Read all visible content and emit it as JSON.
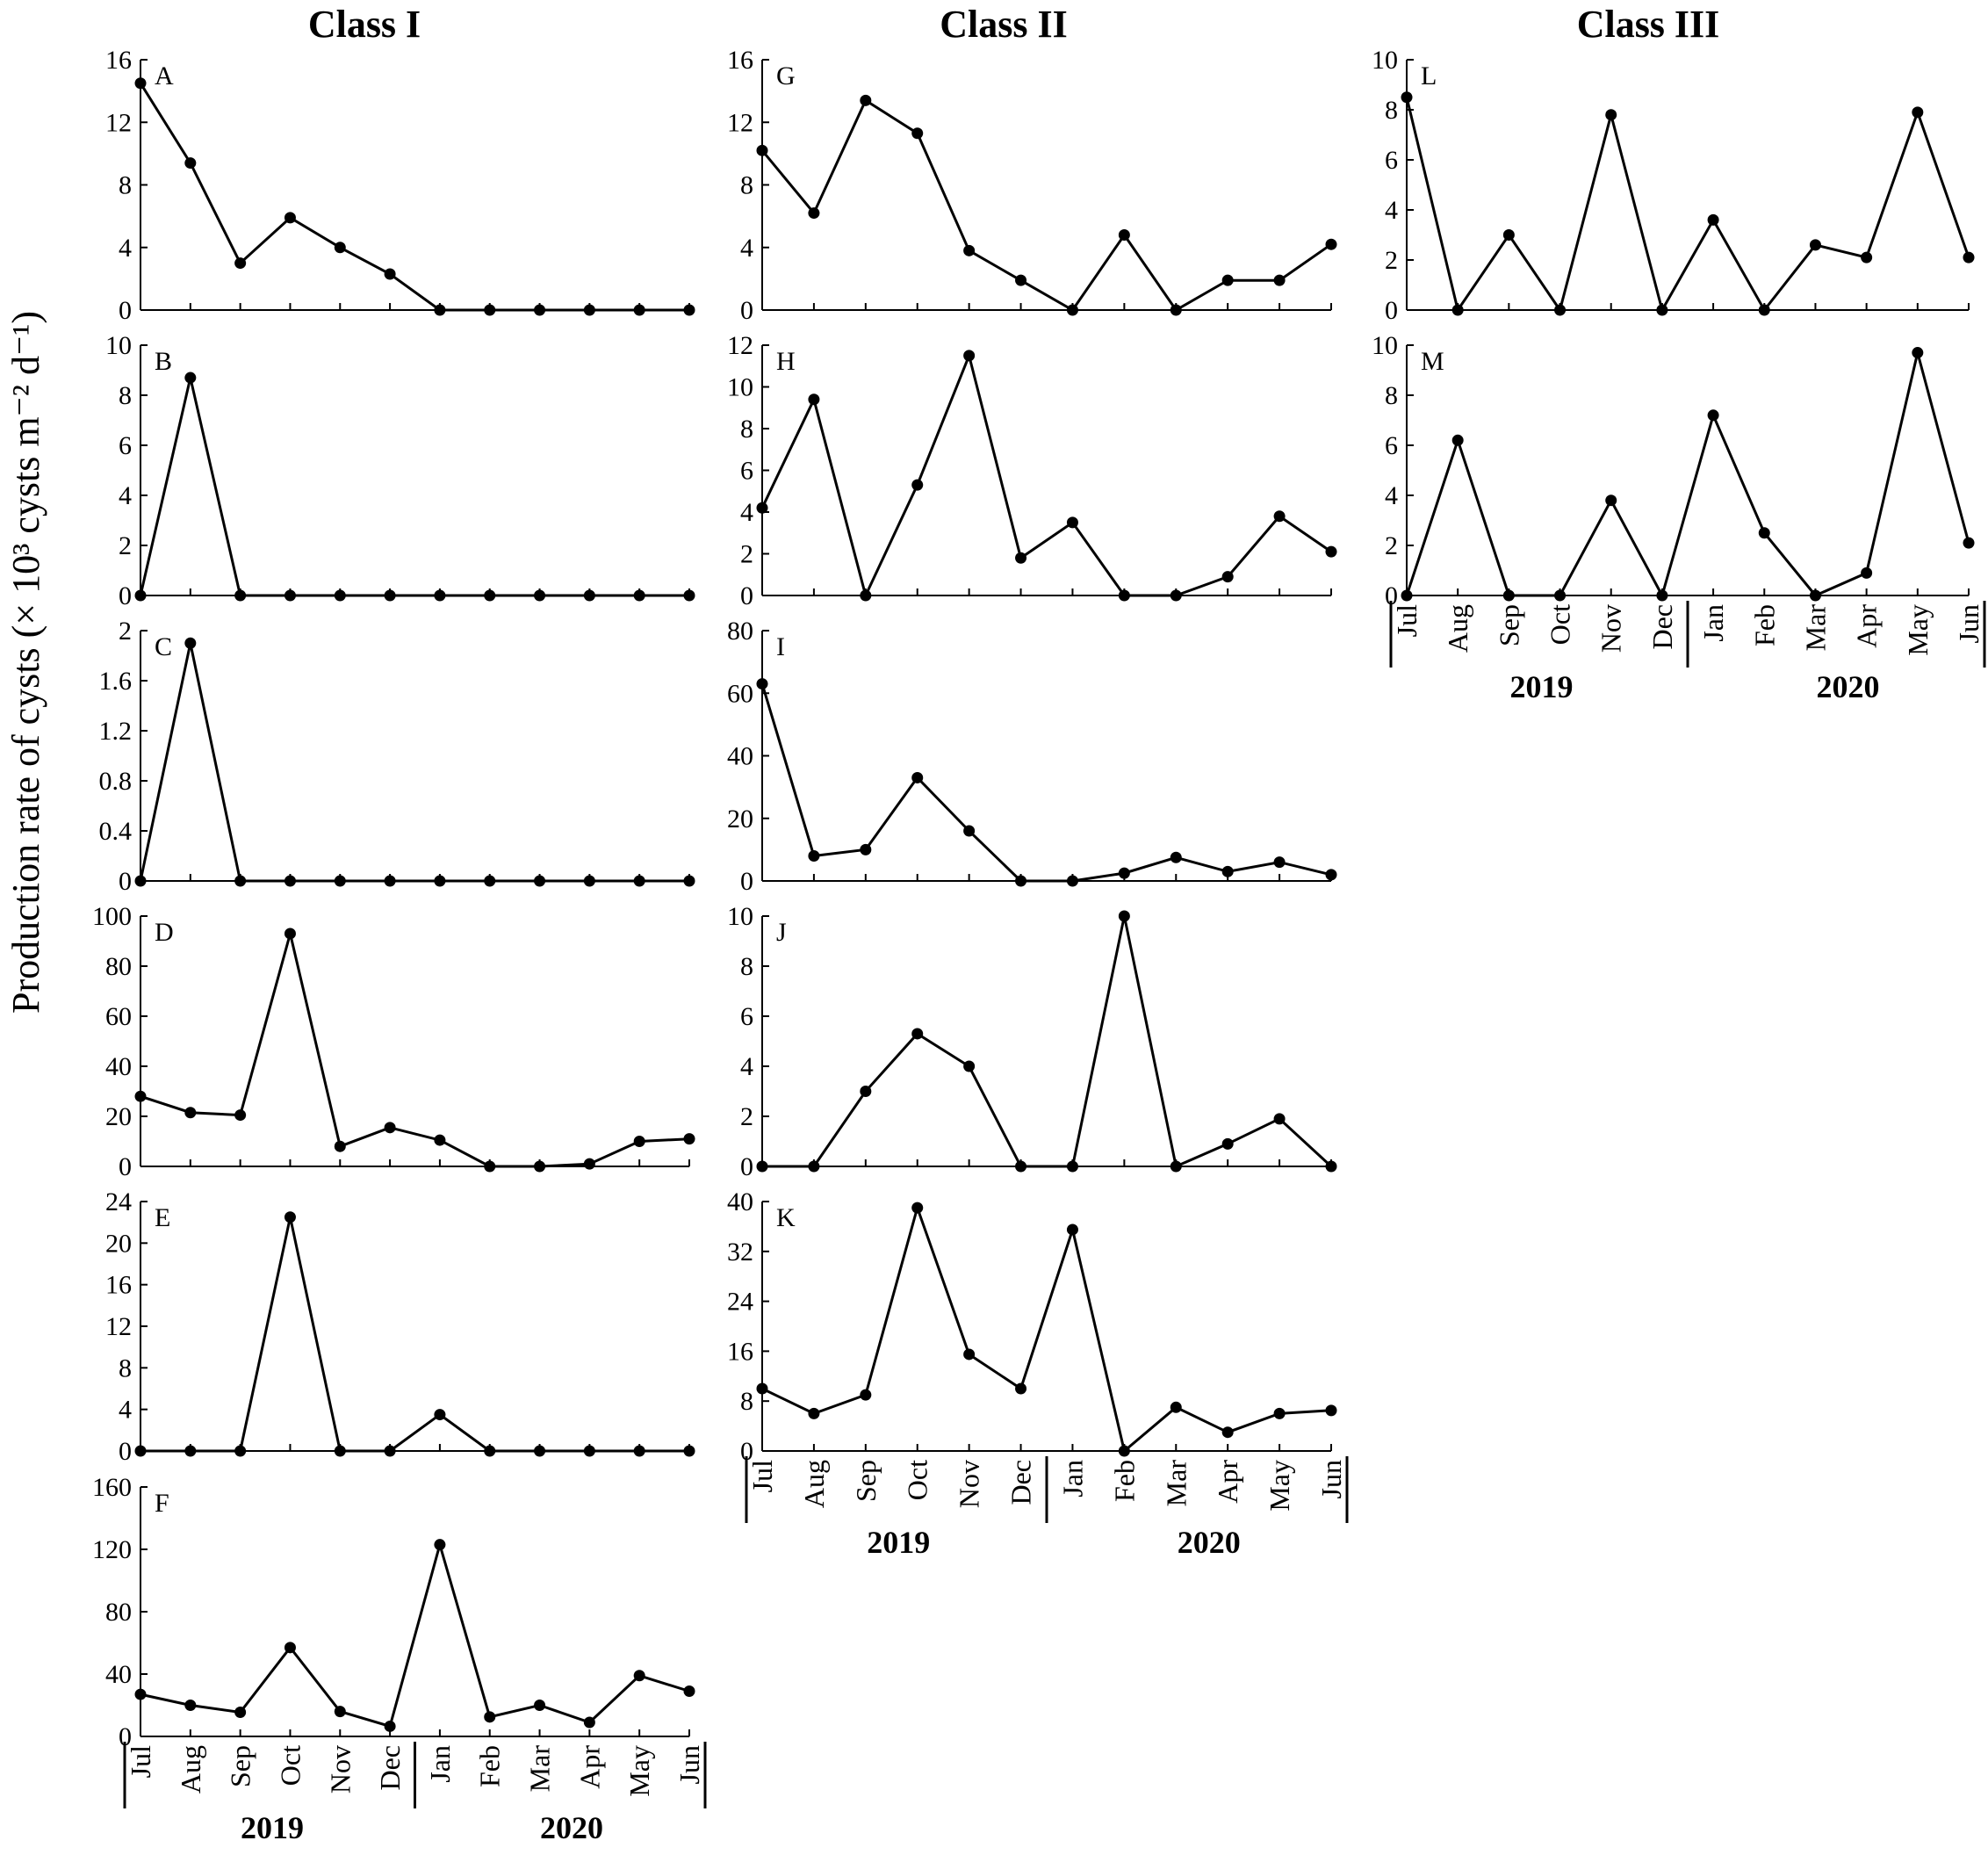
{
  "figure": {
    "column_titles": [
      "Class I",
      "Class II",
      "Class III"
    ],
    "ylabel": "Production rate of cysts (× 10³ cysts m⁻² d⁻¹)",
    "months": [
      "Jul",
      "Aug",
      "Sep",
      "Oct",
      "Nov",
      "Dec",
      "Jan",
      "Feb",
      "Mar",
      "Apr",
      "May",
      "Jun"
    ],
    "years": [
      "2019",
      "2020"
    ],
    "line_color": "#000000",
    "marker_color": "#000000"
  },
  "chart_data": [
    {
      "type": "line",
      "panel": "A",
      "column": "Class I",
      "x": [
        "Jul",
        "Aug",
        "Sep",
        "Oct",
        "Nov",
        "Dec",
        "Jan",
        "Feb",
        "Mar",
        "Apr",
        "May",
        "Jun"
      ],
      "values": [
        14.5,
        9.4,
        3.0,
        5.9,
        4.0,
        2.3,
        0,
        0,
        0,
        0,
        0,
        0
      ],
      "ylim": [
        0,
        16
      ],
      "yticks": [
        0,
        4,
        8,
        12,
        16
      ]
    },
    {
      "type": "line",
      "panel": "B",
      "column": "Class I",
      "x": [
        "Jul",
        "Aug",
        "Sep",
        "Oct",
        "Nov",
        "Dec",
        "Jan",
        "Feb",
        "Mar",
        "Apr",
        "May",
        "Jun"
      ],
      "values": [
        0,
        8.7,
        0,
        0,
        0,
        0,
        0,
        0,
        0,
        0,
        0,
        0
      ],
      "ylim": [
        0,
        10
      ],
      "yticks": [
        0,
        2,
        4,
        6,
        8,
        10
      ]
    },
    {
      "type": "line",
      "panel": "C",
      "column": "Class I",
      "x": [
        "Jul",
        "Aug",
        "Sep",
        "Oct",
        "Nov",
        "Dec",
        "Jan",
        "Feb",
        "Mar",
        "Apr",
        "May",
        "Jun"
      ],
      "values": [
        0,
        1.9,
        0,
        0,
        0,
        0,
        0,
        0,
        0,
        0,
        0,
        0
      ],
      "ylim": [
        0,
        2
      ],
      "yticks": [
        0,
        0.4,
        0.8,
        1.2,
        1.6,
        2
      ]
    },
    {
      "type": "line",
      "panel": "D",
      "column": "Class I",
      "x": [
        "Jul",
        "Aug",
        "Sep",
        "Oct",
        "Nov",
        "Dec",
        "Jan",
        "Feb",
        "Mar",
        "Apr",
        "May",
        "Jun"
      ],
      "values": [
        28,
        21.5,
        20.5,
        93,
        8,
        15.5,
        10.5,
        0,
        0,
        1,
        10,
        11
      ],
      "ylim": [
        0,
        100
      ],
      "yticks": [
        0,
        20,
        40,
        60,
        80,
        100
      ]
    },
    {
      "type": "line",
      "panel": "E",
      "column": "Class I",
      "x": [
        "Jul",
        "Aug",
        "Sep",
        "Oct",
        "Nov",
        "Dec",
        "Jan",
        "Feb",
        "Mar",
        "Apr",
        "May",
        "Jun"
      ],
      "values": [
        0,
        0,
        0,
        22.5,
        0,
        0,
        3.5,
        0,
        0,
        0,
        0,
        0
      ],
      "ylim": [
        0,
        24
      ],
      "yticks": [
        0,
        4,
        8,
        12,
        16,
        20,
        24
      ]
    },
    {
      "type": "line",
      "panel": "F",
      "column": "Class I",
      "x": [
        "Jul",
        "Aug",
        "Sep",
        "Oct",
        "Nov",
        "Dec",
        "Jan",
        "Feb",
        "Mar",
        "Apr",
        "May",
        "Jun"
      ],
      "values": [
        27,
        20,
        15.5,
        57,
        16,
        6.5,
        123,
        12.5,
        20,
        9,
        39,
        29
      ],
      "ylim": [
        0,
        160
      ],
      "yticks": [
        0,
        40,
        80,
        120,
        160
      ]
    },
    {
      "type": "line",
      "panel": "G",
      "column": "Class II",
      "x": [
        "Jul",
        "Aug",
        "Sep",
        "Oct",
        "Nov",
        "Dec",
        "Jan",
        "Feb",
        "Mar",
        "Apr",
        "May",
        "Jun"
      ],
      "values": [
        10.2,
        6.2,
        13.4,
        11.3,
        3.8,
        1.9,
        0,
        4.8,
        0,
        1.9,
        1.9,
        4.2
      ],
      "ylim": [
        0,
        16
      ],
      "yticks": [
        0,
        4,
        8,
        12,
        16
      ]
    },
    {
      "type": "line",
      "panel": "H",
      "column": "Class II",
      "x": [
        "Jul",
        "Aug",
        "Sep",
        "Oct",
        "Nov",
        "Dec",
        "Jan",
        "Feb",
        "Mar",
        "Apr",
        "May",
        "Jun"
      ],
      "values": [
        4.2,
        9.4,
        0,
        5.3,
        11.5,
        1.8,
        3.5,
        0,
        0,
        0.9,
        3.8,
        2.1
      ],
      "ylim": [
        0,
        12
      ],
      "yticks": [
        0,
        2,
        4,
        6,
        8,
        10,
        12
      ]
    },
    {
      "type": "line",
      "panel": "I",
      "column": "Class II",
      "x": [
        "Jul",
        "Aug",
        "Sep",
        "Oct",
        "Nov",
        "Dec",
        "Jan",
        "Feb",
        "Mar",
        "Apr",
        "May",
        "Jun"
      ],
      "values": [
        63,
        8,
        10,
        33,
        16,
        0,
        0,
        2.5,
        7.5,
        3,
        6,
        2
      ],
      "ylim": [
        0,
        80
      ],
      "yticks": [
        0,
        20,
        40,
        60,
        80
      ]
    },
    {
      "type": "line",
      "panel": "J",
      "column": "Class II",
      "x": [
        "Jul",
        "Aug",
        "Sep",
        "Oct",
        "Nov",
        "Dec",
        "Jan",
        "Feb",
        "Mar",
        "Apr",
        "May",
        "Jun"
      ],
      "values": [
        0,
        0,
        3.0,
        5.3,
        4.0,
        0,
        0,
        10,
        0,
        0.9,
        1.9,
        0
      ],
      "ylim": [
        0,
        10
      ],
      "yticks": [
        0,
        2,
        4,
        6,
        8,
        10
      ]
    },
    {
      "type": "line",
      "panel": "K",
      "column": "Class II",
      "x": [
        "Jul",
        "Aug",
        "Sep",
        "Oct",
        "Nov",
        "Dec",
        "Jan",
        "Feb",
        "Mar",
        "Apr",
        "May",
        "Jun"
      ],
      "values": [
        10,
        6,
        9,
        39,
        15.5,
        10,
        35.5,
        0,
        7,
        3,
        6,
        6.5
      ],
      "ylim": [
        0,
        40
      ],
      "yticks": [
        0,
        8,
        16,
        24,
        32,
        40
      ]
    },
    {
      "type": "line",
      "panel": "L",
      "column": "Class III",
      "x": [
        "Jul",
        "Aug",
        "Sep",
        "Oct",
        "Nov",
        "Dec",
        "Jan",
        "Feb",
        "Mar",
        "Apr",
        "May",
        "Jun"
      ],
      "values": [
        8.5,
        0,
        3.0,
        0,
        7.8,
        0,
        3.6,
        0,
        2.6,
        2.1,
        7.9,
        2.1
      ],
      "ylim": [
        0,
        10
      ],
      "yticks": [
        0,
        2,
        4,
        6,
        8,
        10
      ]
    },
    {
      "type": "line",
      "panel": "M",
      "column": "Class III",
      "x": [
        "Jul",
        "Aug",
        "Sep",
        "Oct",
        "Nov",
        "Dec",
        "Jan",
        "Feb",
        "Mar",
        "Apr",
        "May",
        "Jun"
      ],
      "values": [
        0,
        6.2,
        0,
        0,
        3.8,
        0,
        7.2,
        2.5,
        0,
        0.9,
        9.7,
        2.1
      ],
      "ylim": [
        0,
        10
      ],
      "yticks": [
        0,
        2,
        4,
        6,
        8,
        10
      ]
    }
  ]
}
